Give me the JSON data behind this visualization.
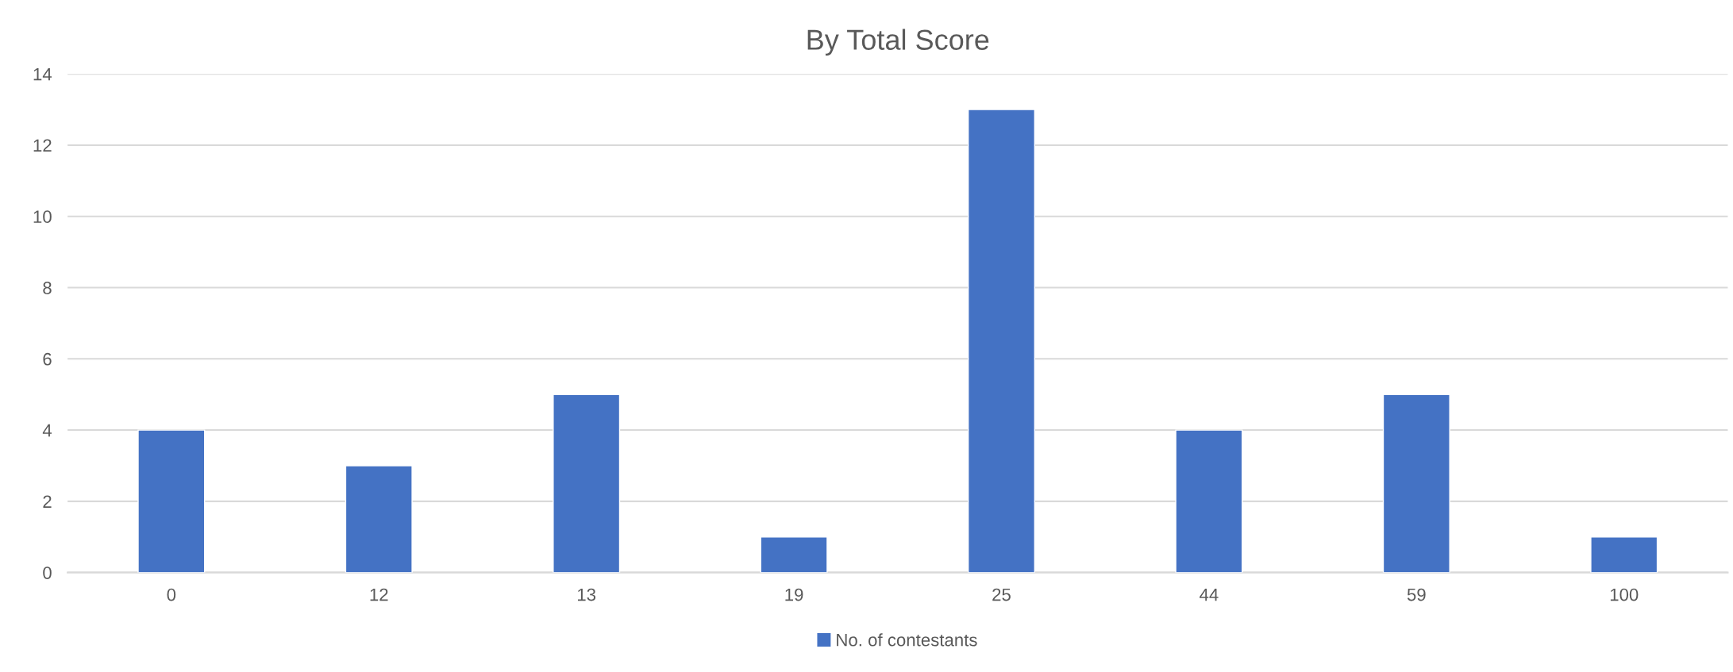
{
  "chart_data": {
    "type": "bar",
    "title": "By Total Score",
    "categories": [
      "0",
      "12",
      "13",
      "19",
      "25",
      "44",
      "59",
      "100"
    ],
    "series": [
      {
        "name": "No. of contestants",
        "color": "#4472c4",
        "values": [
          4,
          3,
          5,
          1,
          13,
          4,
          5,
          1
        ]
      }
    ],
    "ylim": [
      0,
      14
    ],
    "yticks": [
      0,
      2,
      4,
      6,
      8,
      10,
      12,
      14
    ],
    "grid": "y",
    "legend": "bottom"
  }
}
